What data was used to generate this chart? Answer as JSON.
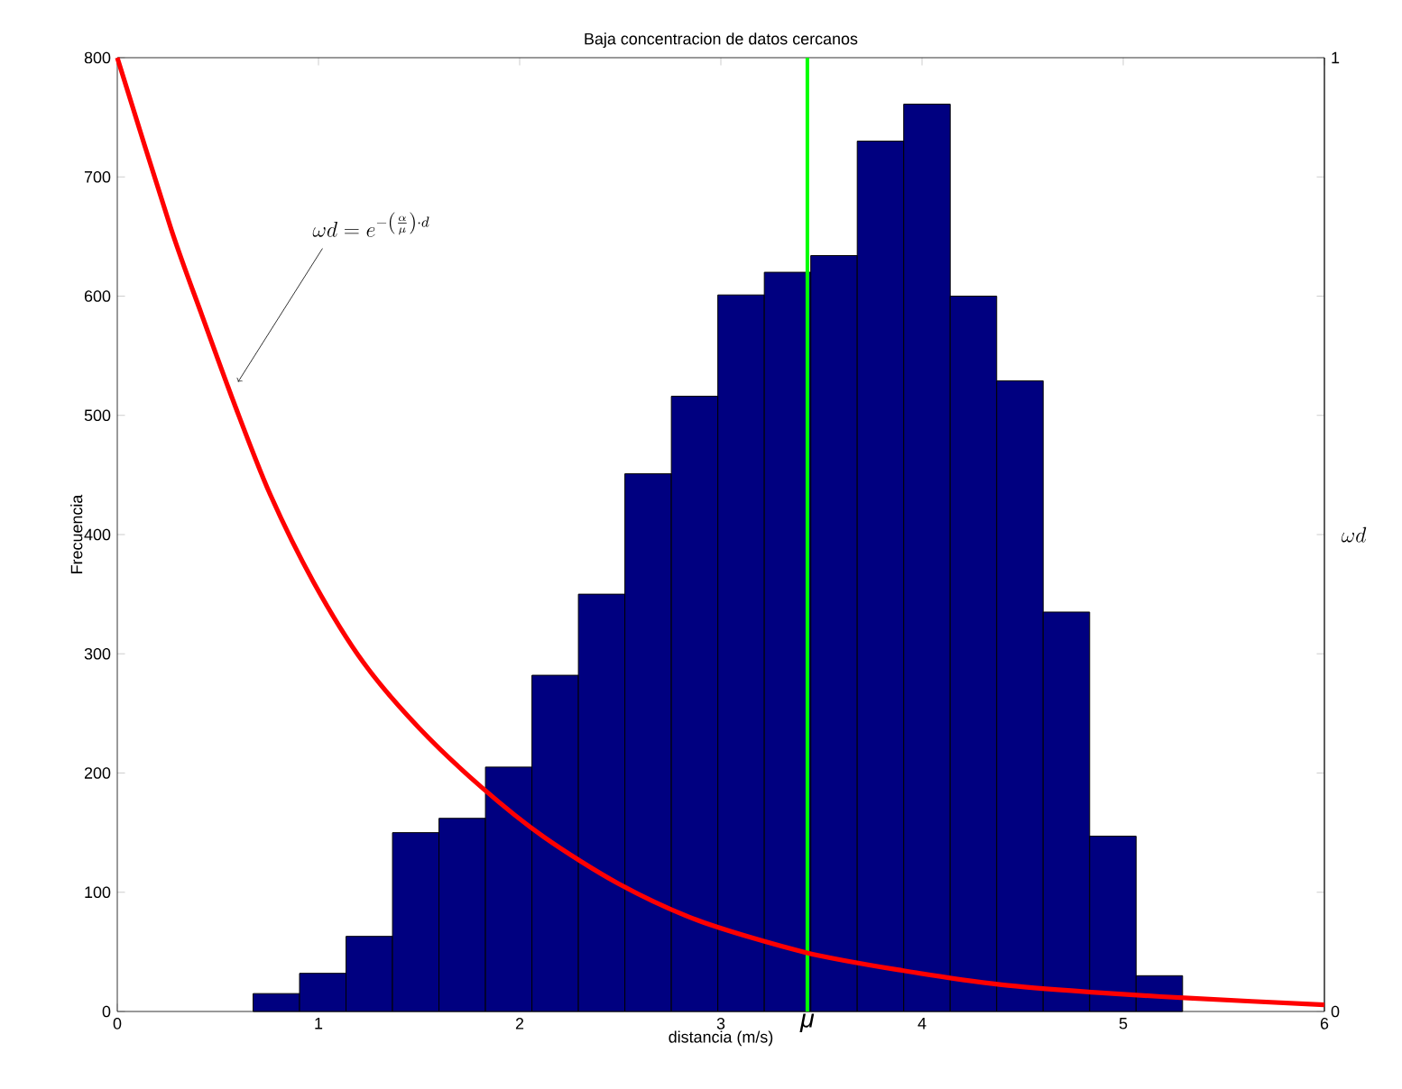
{
  "chart_data": {
    "type": "histogram",
    "title": "Baja concentracion de datos cercanos",
    "xlabel": "distancia (m/s)",
    "ylabel": "Frecuencia",
    "y2label": "\\omega d",
    "xlim": [
      0,
      6
    ],
    "xticks": [
      0,
      1,
      2,
      3,
      4,
      5,
      6
    ],
    "ylim": [
      0,
      800
    ],
    "yticks": [
      0,
      100,
      200,
      300,
      400,
      500,
      600,
      700,
      800
    ],
    "y2lim": [
      0,
      1
    ],
    "y2ticks": [
      0,
      {
        "value": 0.125,
        "label": null
      },
      {
        "value": 0.25,
        "label": null
      },
      {
        "value": 0.375,
        "label": null
      },
      {
        "value": 0.5,
        "label": null
      },
      {
        "value": 0.625,
        "label": null
      },
      {
        "value": 0.75,
        "label": null
      },
      {
        "value": 0.875,
        "label": null
      },
      1
    ],
    "series": [
      {
        "color": "#000080",
        "bins": [
          0.675,
          0.906,
          1.137,
          1.368,
          1.599,
          1.83,
          2.061,
          2.292,
          2.523,
          2.754,
          2.985,
          3.216,
          3.447,
          3.678,
          3.909,
          4.14,
          4.371,
          4.602,
          4.833,
          5.064,
          5.295
        ],
        "values": [
          15,
          32,
          63,
          150,
          162,
          205,
          282,
          350,
          451,
          516,
          601,
          620,
          634,
          730,
          761,
          600,
          529,
          335,
          147,
          30
        ]
      },
      {
        "type": "line",
        "color": "#ff0000",
        "axis": "y2",
        "x": [
          0,
          0.265,
          0.419,
          0.589,
          0.76,
          0.976,
          1.223,
          1.501,
          1.811,
          2.12,
          2.491,
          2.893,
          3.419,
          3.901,
          4.396,
          4.86,
          5.324,
          6
        ],
        "values": [
          1,
          0.822,
          0.731,
          0.633,
          0.542,
          0.45,
          0.366,
          0.297,
          0.235,
          0.183,
          0.134,
          0.095,
          0.062,
          0.043,
          0.028,
          0.02,
          0.014,
          0.007
        ]
      }
    ],
    "ref_lines": [
      {
        "axis": "x",
        "value": 3.43,
        "label": "μ",
        "color": "#00ff00"
      }
    ],
    "annotations": [
      "\\omega d = e^{-\\left(\\frac{\\alpha}{\\mu}\\right)\\cdot d}"
    ],
    "grid": false
  }
}
